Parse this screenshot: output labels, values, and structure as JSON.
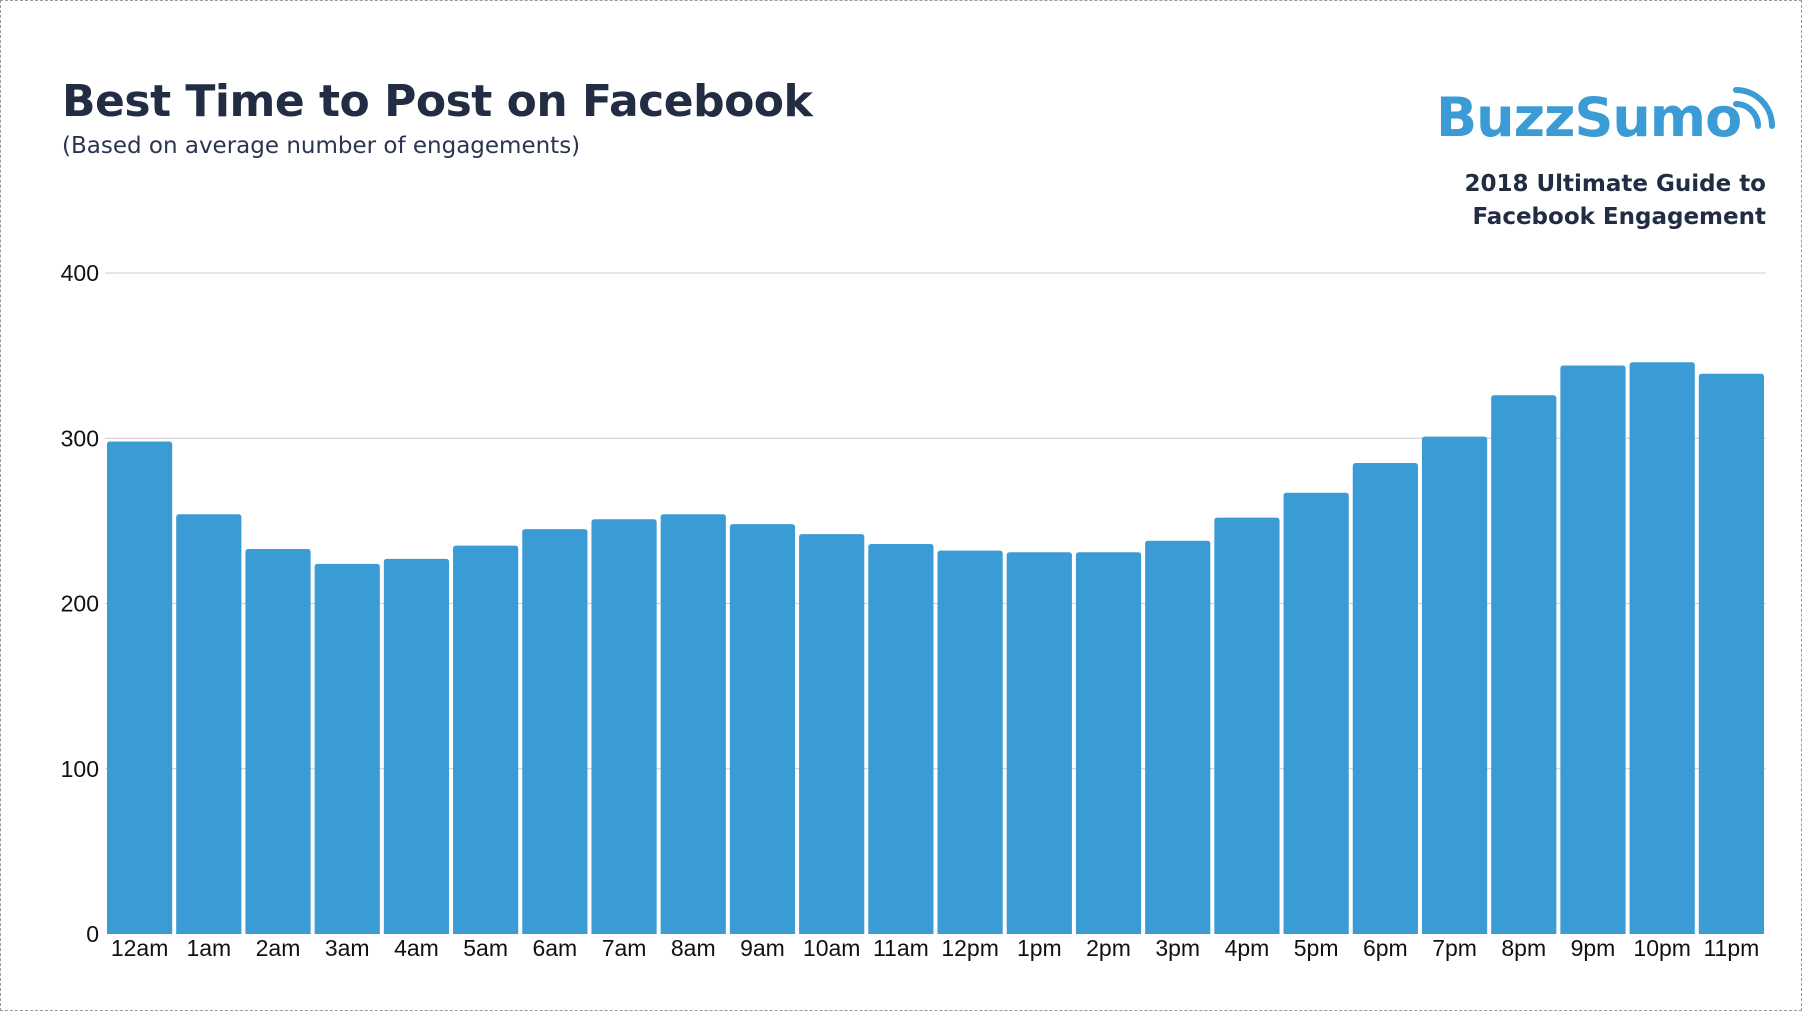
{
  "header": {
    "title": "Best Time to Post on Facebook",
    "subtitle": "(Based on average number of engagements)"
  },
  "brand": {
    "logo_text": "BuzzSumo",
    "logo_icon": "signal-waves-icon",
    "guide_line1": "2018 Ultimate Guide to",
    "guide_line2": "Facebook Engagement"
  },
  "colors": {
    "bar": "#3b9bd4",
    "title": "#222d44",
    "grid": "#cccccc",
    "logo": "#3b9bd4"
  },
  "chart_data": {
    "type": "bar",
    "title": "Best Time to Post on Facebook",
    "subtitle": "(Based on average number of engagements)",
    "xlabel": "",
    "ylabel": "",
    "ylim": [
      0,
      400
    ],
    "yticks": [
      0,
      100,
      200,
      300,
      400
    ],
    "grid": true,
    "legend": "none",
    "categories": [
      "12am",
      "1am",
      "2am",
      "3am",
      "4am",
      "5am",
      "6am",
      "7am",
      "8am",
      "9am",
      "10am",
      "11am",
      "12pm",
      "1pm",
      "2pm",
      "3pm",
      "4pm",
      "5pm",
      "6pm",
      "7pm",
      "8pm",
      "9pm",
      "10pm",
      "11pm"
    ],
    "values": [
      298,
      254,
      233,
      224,
      227,
      235,
      245,
      251,
      254,
      248,
      242,
      236,
      232,
      231,
      231,
      238,
      252,
      267,
      285,
      301,
      326,
      344,
      346,
      339
    ]
  }
}
